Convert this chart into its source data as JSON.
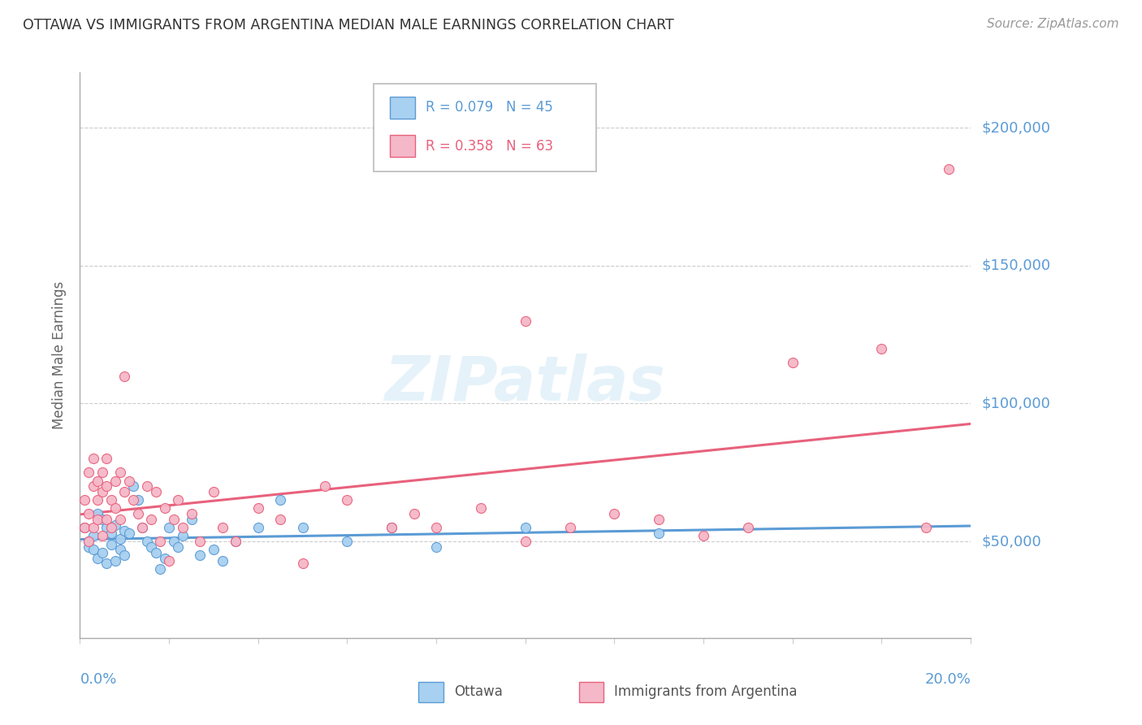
{
  "title": "OTTAWA VS IMMIGRANTS FROM ARGENTINA MEDIAN MALE EARNINGS CORRELATION CHART",
  "source": "Source: ZipAtlas.com",
  "ylabel": "Median Male Earnings",
  "yticks": [
    50000,
    100000,
    150000,
    200000
  ],
  "ytick_labels": [
    "$50,000",
    "$100,000",
    "$150,000",
    "$200,000"
  ],
  "xmin": 0.0,
  "xmax": 0.2,
  "ymin": 15000,
  "ymax": 220000,
  "R_ottawa": 0.079,
  "N_ottawa": 45,
  "R_argentina": 0.358,
  "N_argentina": 63,
  "ottawa_color": "#5b9bd5",
  "argentina_color": "#e8617c",
  "ottawa_scatter_color": "#a8d0f0",
  "argentina_scatter_color": "#f5b8c8",
  "title_color": "#333333",
  "axis_label_color": "#5b9bd5",
  "ytick_color": "#5b9bd5",
  "grid_color": "#cccccc",
  "background_color": "#ffffff",
  "ottawa_x": [
    0.001,
    0.002,
    0.002,
    0.003,
    0.003,
    0.004,
    0.004,
    0.005,
    0.005,
    0.006,
    0.006,
    0.007,
    0.007,
    0.008,
    0.008,
    0.009,
    0.009,
    0.01,
    0.01,
    0.011,
    0.012,
    0.013,
    0.014,
    0.015,
    0.016,
    0.017,
    0.018,
    0.019,
    0.02,
    0.021,
    0.022,
    0.023,
    0.025,
    0.027,
    0.03,
    0.032,
    0.035,
    0.04,
    0.045,
    0.05,
    0.06,
    0.07,
    0.08,
    0.1,
    0.13
  ],
  "ottawa_y": [
    55000,
    50000,
    48000,
    52000,
    47000,
    60000,
    44000,
    58000,
    46000,
    55000,
    42000,
    53000,
    49000,
    56000,
    43000,
    51000,
    47000,
    54000,
    45000,
    53000,
    70000,
    65000,
    55000,
    50000,
    48000,
    46000,
    40000,
    44000,
    55000,
    50000,
    48000,
    52000,
    58000,
    45000,
    47000,
    43000,
    50000,
    55000,
    65000,
    55000,
    50000,
    55000,
    48000,
    55000,
    53000
  ],
  "argentina_x": [
    0.001,
    0.001,
    0.002,
    0.002,
    0.002,
    0.003,
    0.003,
    0.003,
    0.004,
    0.004,
    0.004,
    0.005,
    0.005,
    0.005,
    0.006,
    0.006,
    0.006,
    0.007,
    0.007,
    0.008,
    0.008,
    0.009,
    0.009,
    0.01,
    0.01,
    0.011,
    0.012,
    0.013,
    0.014,
    0.015,
    0.016,
    0.017,
    0.018,
    0.019,
    0.02,
    0.021,
    0.022,
    0.023,
    0.025,
    0.027,
    0.03,
    0.032,
    0.035,
    0.04,
    0.045,
    0.05,
    0.055,
    0.06,
    0.07,
    0.075,
    0.08,
    0.09,
    0.1,
    0.11,
    0.12,
    0.13,
    0.14,
    0.15,
    0.16,
    0.18,
    0.19,
    0.195,
    0.1
  ],
  "argentina_y": [
    55000,
    65000,
    60000,
    75000,
    50000,
    70000,
    80000,
    55000,
    65000,
    72000,
    58000,
    68000,
    75000,
    52000,
    70000,
    80000,
    58000,
    65000,
    55000,
    72000,
    62000,
    75000,
    58000,
    68000,
    110000,
    72000,
    65000,
    60000,
    55000,
    70000,
    58000,
    68000,
    50000,
    62000,
    43000,
    58000,
    65000,
    55000,
    60000,
    50000,
    68000,
    55000,
    50000,
    62000,
    58000,
    42000,
    70000,
    65000,
    55000,
    60000,
    55000,
    62000,
    50000,
    55000,
    60000,
    58000,
    52000,
    55000,
    115000,
    120000,
    55000,
    185000,
    130000
  ]
}
